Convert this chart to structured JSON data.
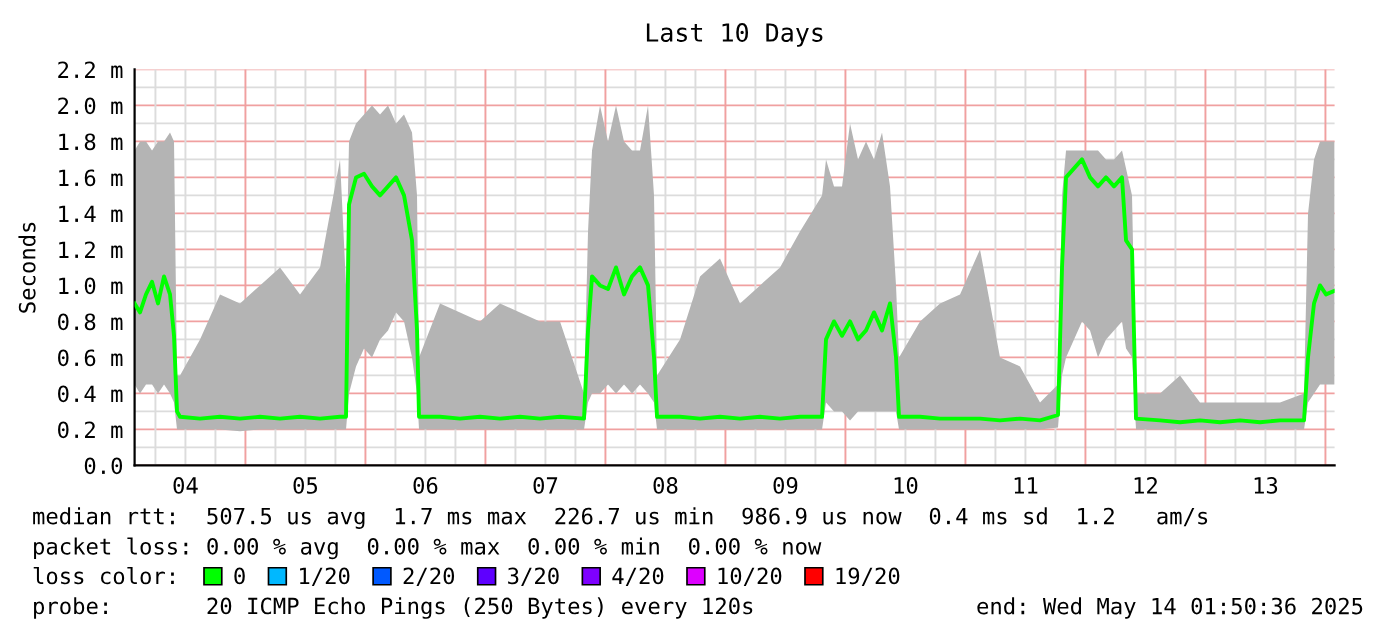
{
  "chart_data": {
    "type": "line",
    "title": "Last 10 Days",
    "ylabel": "Seconds",
    "legend_title": "loss color:",
    "x": [
      "2025-05-04T01:50",
      "2025-05-04T02:55",
      "2025-05-04T04:07",
      "2025-05-04T05:19",
      "2025-05-04T06:31",
      "2025-05-04T07:43",
      "2025-05-04T08:55",
      "2025-05-04T09:43",
      "2025-05-04T10:19",
      "2025-05-04T10:55",
      "2025-05-04T14:55",
      "2025-05-04T18:55",
      "2025-05-04T22:55",
      "2025-05-05T02:55",
      "2025-05-05T06:55",
      "2025-05-05T10:55",
      "2025-05-05T14:55",
      "2025-05-05T18:55",
      "2025-05-05T20:07",
      "2025-05-05T20:43",
      "2025-05-05T22:07",
      "2025-05-05T23:43",
      "2025-05-06T01:19",
      "2025-05-06T02:55",
      "2025-05-06T04:31",
      "2025-05-06T06:07",
      "2025-05-06T07:43",
      "2025-05-06T09:19",
      "2025-05-06T10:19",
      "2025-05-06T10:43",
      "2025-05-06T14:55",
      "2025-05-06T18:55",
      "2025-05-06T22:55",
      "2025-05-07T02:55",
      "2025-05-07T06:55",
      "2025-05-07T10:55",
      "2025-05-07T14:55",
      "2025-05-07T19:43",
      "2025-05-07T20:31",
      "2025-05-07T21:19",
      "2025-05-07T22:55",
      "2025-05-08T00:31",
      "2025-05-08T02:07",
      "2025-05-08T03:43",
      "2025-05-08T05:19",
      "2025-05-08T06:55",
      "2025-05-08T08:31",
      "2025-05-08T09:43",
      "2025-05-08T10:19",
      "2025-05-08T14:55",
      "2025-05-08T18:55",
      "2025-05-08T22:55",
      "2025-05-09T02:55",
      "2025-05-09T06:55",
      "2025-05-09T10:55",
      "2025-05-09T14:55",
      "2025-05-09T19:19",
      "2025-05-09T20:07",
      "2025-05-09T21:43",
      "2025-05-09T23:19",
      "2025-05-10T00:55",
      "2025-05-10T02:31",
      "2025-05-10T04:07",
      "2025-05-10T05:43",
      "2025-05-10T07:19",
      "2025-05-10T08:55",
      "2025-05-10T10:07",
      "2025-05-10T10:43",
      "2025-05-10T14:55",
      "2025-05-10T18:55",
      "2025-05-10T22:55",
      "2025-05-11T02:55",
      "2025-05-11T06:55",
      "2025-05-11T10:55",
      "2025-05-11T14:55",
      "2025-05-11T18:31",
      "2025-05-11T19:19",
      "2025-05-11T20:07",
      "2025-05-11T21:43",
      "2025-05-11T23:19",
      "2025-05-12T00:55",
      "2025-05-12T02:31",
      "2025-05-12T04:07",
      "2025-05-12T05:43",
      "2025-05-12T07:19",
      "2025-05-12T08:07",
      "2025-05-12T09:19",
      "2025-05-12T10:07",
      "2025-05-12T14:55",
      "2025-05-12T18:55",
      "2025-05-12T22:55",
      "2025-05-13T02:55",
      "2025-05-13T06:55",
      "2025-05-13T10:55",
      "2025-05-13T14:55",
      "2025-05-13T19:43",
      "2025-05-13T20:31",
      "2025-05-13T21:43",
      "2025-05-13T22:55",
      "2025-05-14T00:07",
      "2025-05-14T01:50"
    ],
    "series": [
      {
        "name": "0",
        "color": "#00ff00",
        "values": [
          0.9,
          0.85,
          0.95,
          1.02,
          0.9,
          1.05,
          0.95,
          0.72,
          0.3,
          0.27,
          0.26,
          0.27,
          0.26,
          0.27,
          0.26,
          0.27,
          0.26,
          0.27,
          0.27,
          1.45,
          1.6,
          1.62,
          1.55,
          1.5,
          1.55,
          1.6,
          1.5,
          1.25,
          0.75,
          0.27,
          0.27,
          0.26,
          0.27,
          0.26,
          0.27,
          0.26,
          0.27,
          0.26,
          0.75,
          1.05,
          1.0,
          0.98,
          1.1,
          0.95,
          1.05,
          1.1,
          1.0,
          0.6,
          0.27,
          0.27,
          0.26,
          0.27,
          0.26,
          0.27,
          0.26,
          0.27,
          0.27,
          0.7,
          0.8,
          0.72,
          0.8,
          0.7,
          0.75,
          0.85,
          0.75,
          0.9,
          0.6,
          0.27,
          0.27,
          0.26,
          0.26,
          0.26,
          0.25,
          0.26,
          0.25,
          0.28,
          1.1,
          1.6,
          1.65,
          1.7,
          1.6,
          1.55,
          1.6,
          1.55,
          1.6,
          1.25,
          1.2,
          0.26,
          0.25,
          0.24,
          0.25,
          0.24,
          0.25,
          0.24,
          0.25,
          0.25,
          0.6,
          0.9,
          1.0,
          0.95,
          0.97
        ],
        "lower": [
          0.45,
          0.4,
          0.45,
          0.45,
          0.4,
          0.45,
          0.4,
          0.35,
          0.2,
          0.2,
          0.2,
          0.2,
          0.19,
          0.2,
          0.2,
          0.2,
          0.2,
          0.2,
          0.2,
          0.4,
          0.55,
          0.65,
          0.6,
          0.7,
          0.75,
          0.85,
          0.8,
          0.6,
          0.4,
          0.2,
          0.2,
          0.2,
          0.2,
          0.2,
          0.2,
          0.2,
          0.2,
          0.2,
          0.35,
          0.4,
          0.4,
          0.45,
          0.4,
          0.45,
          0.4,
          0.45,
          0.4,
          0.35,
          0.2,
          0.2,
          0.2,
          0.2,
          0.2,
          0.2,
          0.2,
          0.2,
          0.2,
          0.35,
          0.3,
          0.3,
          0.25,
          0.3,
          0.3,
          0.3,
          0.3,
          0.3,
          0.3,
          0.2,
          0.2,
          0.2,
          0.2,
          0.2,
          0.2,
          0.2,
          0.2,
          0.21,
          0.5,
          0.6,
          0.7,
          0.8,
          0.75,
          0.6,
          0.7,
          0.75,
          0.8,
          0.65,
          0.6,
          0.2,
          0.2,
          0.2,
          0.2,
          0.2,
          0.2,
          0.2,
          0.2,
          0.2,
          0.35,
          0.4,
          0.45,
          0.45,
          0.45
        ],
        "upper": [
          1.75,
          1.8,
          1.8,
          1.75,
          1.8,
          1.8,
          1.85,
          1.8,
          0.5,
          0.5,
          0.7,
          0.95,
          0.9,
          1.0,
          1.1,
          0.95,
          1.1,
          1.7,
          1.0,
          1.8,
          1.9,
          1.95,
          2.0,
          1.95,
          2.0,
          1.9,
          1.95,
          1.85,
          1.5,
          0.6,
          0.9,
          0.85,
          0.8,
          0.9,
          0.85,
          0.8,
          0.8,
          0.4,
          1.3,
          1.75,
          2.0,
          1.8,
          2.0,
          1.8,
          1.75,
          1.75,
          2.0,
          1.5,
          0.5,
          0.7,
          1.05,
          1.15,
          0.9,
          1.0,
          1.1,
          1.3,
          1.5,
          1.7,
          1.55,
          1.55,
          1.9,
          1.7,
          1.8,
          1.7,
          1.85,
          1.55,
          1.0,
          0.6,
          0.8,
          0.9,
          0.95,
          1.2,
          0.6,
          0.55,
          0.35,
          0.45,
          1.5,
          1.75,
          1.75,
          1.75,
          1.75,
          1.75,
          1.7,
          1.7,
          1.75,
          1.65,
          1.5,
          0.4,
          0.4,
          0.5,
          0.35,
          0.35,
          0.35,
          0.35,
          0.35,
          0.4,
          1.4,
          1.7,
          1.8,
          1.8,
          1.8
        ]
      },
      {
        "name": "1/20",
        "color": "#00b8ff",
        "values": [
          null,
          null,
          null,
          null,
          null,
          null,
          null,
          null,
          null,
          null,
          null,
          null,
          null,
          null,
          null,
          null,
          null,
          null,
          null,
          null,
          null,
          null,
          null,
          null,
          null,
          null,
          null,
          null,
          null,
          null,
          null,
          null,
          null,
          null,
          null,
          null,
          null,
          null,
          null,
          null,
          null,
          null,
          null,
          null,
          null,
          null,
          null,
          null,
          null,
          null,
          null,
          null,
          null,
          null,
          null,
          null,
          null,
          null,
          null,
          null,
          null,
          null,
          null,
          null,
          null,
          null,
          null,
          null,
          null,
          null,
          null,
          null,
          null,
          null,
          null,
          null,
          null,
          null,
          null,
          null,
          null,
          null,
          null,
          null,
          null,
          null,
          null,
          null,
          null,
          null,
          null,
          null,
          null,
          null,
          null,
          null,
          null,
          null,
          null,
          null,
          null
        ]
      },
      {
        "name": "2/20",
        "color": "#0059ff",
        "values": [
          null,
          null,
          null,
          null,
          null,
          null,
          null,
          null,
          null,
          null,
          null,
          null,
          null,
          null,
          null,
          null,
          null,
          null,
          null,
          null,
          null,
          null,
          null,
          null,
          null,
          null,
          null,
          null,
          null,
          null,
          null,
          null,
          null,
          null,
          null,
          null,
          null,
          null,
          null,
          null,
          null,
          null,
          null,
          null,
          null,
          null,
          null,
          null,
          null,
          null,
          null,
          null,
          null,
          null,
          null,
          null,
          null,
          null,
          null,
          null,
          null,
          null,
          null,
          null,
          null,
          null,
          null,
          null,
          null,
          null,
          null,
          null,
          null,
          null,
          null,
          null,
          null,
          null,
          null,
          null,
          null,
          null,
          null,
          null,
          null,
          null,
          null,
          null,
          null,
          null,
          null,
          null,
          null,
          null,
          null,
          null,
          null,
          null,
          null,
          null,
          null
        ]
      },
      {
        "name": "3/20",
        "color": "#5e00ff",
        "values": [
          null,
          null,
          null,
          null,
          null,
          null,
          null,
          null,
          null,
          null,
          null,
          null,
          null,
          null,
          null,
          null,
          null,
          null,
          null,
          null,
          null,
          null,
          null,
          null,
          null,
          null,
          null,
          null,
          null,
          null,
          null,
          null,
          null,
          null,
          null,
          null,
          null,
          null,
          null,
          null,
          null,
          null,
          null,
          null,
          null,
          null,
          null,
          null,
          null,
          null,
          null,
          null,
          null,
          null,
          null,
          null,
          null,
          null,
          null,
          null,
          null,
          null,
          null,
          null,
          null,
          null,
          null,
          null,
          null,
          null,
          null,
          null,
          null,
          null,
          null,
          null,
          null,
          null,
          null,
          null,
          null,
          null,
          null,
          null,
          null,
          null,
          null,
          null,
          null,
          null,
          null,
          null,
          null,
          null,
          null,
          null,
          null,
          null,
          null,
          null,
          null
        ]
      },
      {
        "name": "4/20",
        "color": "#7e00ff",
        "values": [
          null,
          null,
          null,
          null,
          null,
          null,
          null,
          null,
          null,
          null,
          null,
          null,
          null,
          null,
          null,
          null,
          null,
          null,
          null,
          null,
          null,
          null,
          null,
          null,
          null,
          null,
          null,
          null,
          null,
          null,
          null,
          null,
          null,
          null,
          null,
          null,
          null,
          null,
          null,
          null,
          null,
          null,
          null,
          null,
          null,
          null,
          null,
          null,
          null,
          null,
          null,
          null,
          null,
          null,
          null,
          null,
          null,
          null,
          null,
          null,
          null,
          null,
          null,
          null,
          null,
          null,
          null,
          null,
          null,
          null,
          null,
          null,
          null,
          null,
          null,
          null,
          null,
          null,
          null,
          null,
          null,
          null,
          null,
          null,
          null,
          null,
          null,
          null,
          null,
          null,
          null,
          null,
          null,
          null,
          null,
          null,
          null,
          null,
          null,
          null,
          null
        ]
      },
      {
        "name": "10/20",
        "color": "#dd00ff",
        "values": [
          null,
          null,
          null,
          null,
          null,
          null,
          null,
          null,
          null,
          null,
          null,
          null,
          null,
          null,
          null,
          null,
          null,
          null,
          null,
          null,
          null,
          null,
          null,
          null,
          null,
          null,
          null,
          null,
          null,
          null,
          null,
          null,
          null,
          null,
          null,
          null,
          null,
          null,
          null,
          null,
          null,
          null,
          null,
          null,
          null,
          null,
          null,
          null,
          null,
          null,
          null,
          null,
          null,
          null,
          null,
          null,
          null,
          null,
          null,
          null,
          null,
          null,
          null,
          null,
          null,
          null,
          null,
          null,
          null,
          null,
          null,
          null,
          null,
          null,
          null,
          null,
          null,
          null,
          null,
          null,
          null,
          null,
          null,
          null,
          null,
          null,
          null,
          null,
          null,
          null,
          null,
          null,
          null,
          null,
          null,
          null,
          null,
          null,
          null,
          null,
          null
        ]
      },
      {
        "name": "19/20",
        "color": "#ff0000",
        "values": [
          null,
          null,
          null,
          null,
          null,
          null,
          null,
          null,
          null,
          null,
          null,
          null,
          null,
          null,
          null,
          null,
          null,
          null,
          null,
          null,
          null,
          null,
          null,
          null,
          null,
          null,
          null,
          null,
          null,
          null,
          null,
          null,
          null,
          null,
          null,
          null,
          null,
          null,
          null,
          null,
          null,
          null,
          null,
          null,
          null,
          null,
          null,
          null,
          null,
          null,
          null,
          null,
          null,
          null,
          null,
          null,
          null,
          null,
          null,
          null,
          null,
          null,
          null,
          null,
          null,
          null,
          null,
          null,
          null,
          null,
          null,
          null,
          null,
          null,
          null,
          null,
          null,
          null,
          null,
          null,
          null,
          null,
          null,
          null,
          null,
          null,
          null,
          null,
          null,
          null,
          null,
          null,
          null,
          null,
          null,
          null,
          null,
          null,
          null,
          null,
          null
        ]
      }
    ],
    "xlim": [
      "2025-05-04T01:50",
      "2025-05-14T01:50"
    ],
    "xticks": [
      {
        "value": "2025-05-04T06:00",
        "label": null
      },
      {
        "value": "2025-05-04T12:00",
        "label": "04"
      },
      {
        "value": "2025-05-04T18:00",
        "label": null
      },
      {
        "value": "2025-05-05T00:00",
        "label": null
      },
      {
        "value": "2025-05-05T06:00",
        "label": null
      },
      {
        "value": "2025-05-05T12:00",
        "label": "05"
      },
      {
        "value": "2025-05-05T18:00",
        "label": null
      },
      {
        "value": "2025-05-06T00:00",
        "label": null
      },
      {
        "value": "2025-05-06T06:00",
        "label": null
      },
      {
        "value": "2025-05-06T12:00",
        "label": "06"
      },
      {
        "value": "2025-05-06T18:00",
        "label": null
      },
      {
        "value": "2025-05-07T00:00",
        "label": null
      },
      {
        "value": "2025-05-07T06:00",
        "label": null
      },
      {
        "value": "2025-05-07T12:00",
        "label": "07"
      },
      {
        "value": "2025-05-07T18:00",
        "label": null
      },
      {
        "value": "2025-05-08T00:00",
        "label": null
      },
      {
        "value": "2025-05-08T06:00",
        "label": null
      },
      {
        "value": "2025-05-08T12:00",
        "label": "08"
      },
      {
        "value": "2025-05-08T18:00",
        "label": null
      },
      {
        "value": "2025-05-09T00:00",
        "label": null
      },
      {
        "value": "2025-05-09T06:00",
        "label": null
      },
      {
        "value": "2025-05-09T12:00",
        "label": "09"
      },
      {
        "value": "2025-05-09T18:00",
        "label": null
      },
      {
        "value": "2025-05-10T00:00",
        "label": null
      },
      {
        "value": "2025-05-10T06:00",
        "label": null
      },
      {
        "value": "2025-05-10T12:00",
        "label": "10"
      },
      {
        "value": "2025-05-10T18:00",
        "label": null
      },
      {
        "value": "2025-05-11T00:00",
        "label": null
      },
      {
        "value": "2025-05-11T06:00",
        "label": null
      },
      {
        "value": "2025-05-11T12:00",
        "label": "11"
      },
      {
        "value": "2025-05-11T18:00",
        "label": null
      },
      {
        "value": "2025-05-12T00:00",
        "label": null
      },
      {
        "value": "2025-05-12T06:00",
        "label": null
      },
      {
        "value": "2025-05-12T12:00",
        "label": "12"
      },
      {
        "value": "2025-05-12T18:00",
        "label": null
      },
      {
        "value": "2025-05-13T00:00",
        "label": null
      },
      {
        "value": "2025-05-13T06:00",
        "label": null
      },
      {
        "value": "2025-05-13T12:00",
        "label": "13"
      },
      {
        "value": "2025-05-13T18:00",
        "label": null
      },
      {
        "value": "2025-05-14T00:00",
        "label": null
      }
    ],
    "ylim": [
      0,
      2.2
    ],
    "yticks": [
      {
        "value": 0,
        "label": "0.0"
      },
      {
        "value": 0.1,
        "label": null
      },
      {
        "value": 0.2,
        "label": "0.2 m"
      },
      {
        "value": 0.3,
        "label": null
      },
      {
        "value": 0.4,
        "label": "0.4 m"
      },
      {
        "value": 0.5,
        "label": null
      },
      {
        "value": 0.6,
        "label": "0.6 m"
      },
      {
        "value": 0.7,
        "label": null
      },
      {
        "value": 0.8,
        "label": "0.8 m"
      },
      {
        "value": 0.9,
        "label": null
      },
      {
        "value": 1.0,
        "label": "1.0 m"
      },
      {
        "value": 1.1,
        "label": null
      },
      {
        "value": 1.2,
        "label": "1.2 m"
      },
      {
        "value": 1.3,
        "label": null
      },
      {
        "value": 1.4,
        "label": "1.4 m"
      },
      {
        "value": 1.5,
        "label": null
      },
      {
        "value": 1.6,
        "label": "1.6 m"
      },
      {
        "value": 1.7,
        "label": null
      },
      {
        "value": 1.8,
        "label": "1.8 m"
      },
      {
        "value": 1.9,
        "label": null
      },
      {
        "value": 2.0,
        "label": "2.0 m"
      },
      {
        "value": 2.1,
        "label": null
      },
      {
        "value": 2.2,
        "label": "2.2 m"
      }
    ],
    "grid": true,
    "legend": "bottom",
    "marker": "none",
    "line_style": "solid",
    "annotations": [
      "median rtt:  507.5 us avg  1.7 ms max  226.7 us min  986.9 us now  0.4 ms sd  1.2   am/s",
      "packet loss: 0.00 % avg  0.00 % max  0.00 % min  0.00 % now",
      "probe:       20 ICMP Echo Pings (250 Bytes) every 120s",
      "end: Wed May 14 01:50:36 2025"
    ]
  }
}
